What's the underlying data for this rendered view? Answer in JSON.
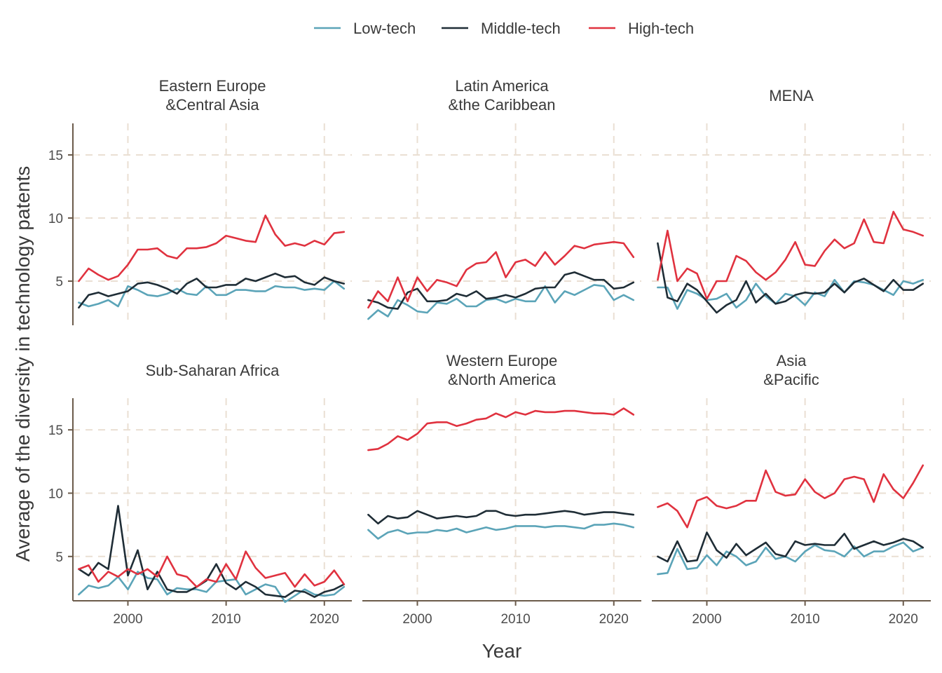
{
  "chart_data": {
    "type": "line",
    "xlabel": "Year",
    "ylabel": "Average of the diversity in technology patents",
    "xlim": [
      1994.4,
      2022.8
    ],
    "ylim": [
      1.5,
      17.5
    ],
    "x_ticks": [
      2000,
      2010,
      2020
    ],
    "y_ticks": [
      5,
      10,
      15
    ],
    "grid": true,
    "legend_position": "top",
    "legend": [
      {
        "name": "Low-tech",
        "color": "#5ba4b8"
      },
      {
        "name": "Middle-tech",
        "color": "#1f2d36"
      },
      {
        "name": "High-tech",
        "color": "#e0323f"
      }
    ],
    "years": [
      1995,
      1996,
      1997,
      1998,
      1999,
      2000,
      2001,
      2002,
      2003,
      2004,
      2005,
      2006,
      2007,
      2008,
      2009,
      2010,
      2011,
      2012,
      2013,
      2014,
      2015,
      2016,
      2017,
      2018,
      2019,
      2020,
      2021,
      2022
    ],
    "panels": [
      {
        "title_line1": "Eastern Europe",
        "title_line2": "&Central Asia",
        "series": [
          {
            "name": "Low-tech",
            "values": [
              3.3,
              3.0,
              3.2,
              3.5,
              3.0,
              4.6,
              4.3,
              3.9,
              3.8,
              4.0,
              4.4,
              4.0,
              3.9,
              4.6,
              3.9,
              3.9,
              4.3,
              4.3,
              4.2,
              4.2,
              4.6,
              4.5,
              4.5,
              4.3,
              4.4,
              4.3,
              5.0,
              4.4
            ]
          },
          {
            "name": "Middle-tech",
            "values": [
              2.9,
              3.9,
              4.1,
              3.8,
              4.0,
              4.2,
              4.8,
              4.9,
              4.7,
              4.4,
              4.0,
              4.8,
              5.2,
              4.5,
              4.5,
              4.7,
              4.7,
              5.2,
              5.0,
              5.3,
              5.6,
              5.3,
              5.4,
              4.9,
              4.7,
              5.3,
              5.0,
              4.8
            ]
          },
          {
            "name": "High-tech",
            "values": [
              5.0,
              6.0,
              5.5,
              5.1,
              5.4,
              6.3,
              7.5,
              7.5,
              7.6,
              7.0,
              6.8,
              7.6,
              7.6,
              7.7,
              8.0,
              8.6,
              8.4,
              8.2,
              8.1,
              10.2,
              8.7,
              7.8,
              8.0,
              7.8,
              8.2,
              7.9,
              8.8,
              8.9
            ]
          }
        ]
      },
      {
        "title_line1": "Latin America",
        "title_line2": "&the Caribbean",
        "series": [
          {
            "name": "Low-tech",
            "values": [
              2.0,
              2.7,
              2.2,
              3.5,
              3.1,
              2.6,
              2.5,
              3.3,
              3.2,
              3.6,
              3.0,
              3.0,
              3.5,
              3.6,
              3.3,
              3.6,
              3.4,
              3.4,
              4.6,
              3.3,
              4.2,
              3.9,
              4.3,
              4.7,
              4.6,
              3.5,
              3.9,
              3.5
            ]
          },
          {
            "name": "Middle-tech",
            "values": [
              3.5,
              3.3,
              2.9,
              2.8,
              4.1,
              4.4,
              3.4,
              3.4,
              3.5,
              4.0,
              3.8,
              4.2,
              3.6,
              3.7,
              3.9,
              3.7,
              4.0,
              4.4,
              4.5,
              4.5,
              5.5,
              5.7,
              5.4,
              5.1,
              5.1,
              4.4,
              4.5,
              4.9
            ]
          },
          {
            "name": "High-tech",
            "values": [
              2.9,
              4.2,
              3.4,
              5.3,
              3.4,
              5.3,
              4.2,
              5.1,
              4.9,
              4.6,
              5.9,
              6.4,
              6.5,
              7.3,
              5.3,
              6.5,
              6.7,
              6.2,
              7.3,
              6.3,
              7.0,
              7.8,
              7.6,
              7.9,
              8.0,
              8.1,
              8.0,
              6.9
            ]
          }
        ]
      },
      {
        "title_line1": "MENA",
        "title_line2": "",
        "series": [
          {
            "name": "Low-tech",
            "values": [
              4.5,
              4.5,
              2.8,
              4.3,
              4.0,
              3.5,
              3.6,
              4.0,
              2.9,
              3.5,
              4.8,
              3.8,
              3.2,
              4.0,
              3.8,
              3.1,
              4.1,
              3.8,
              5.1,
              4.1,
              5.0,
              4.9,
              4.7,
              4.3,
              3.9,
              5.0,
              4.8,
              5.1
            ]
          },
          {
            "name": "Middle-tech",
            "values": [
              8.0,
              3.7,
              3.4,
              4.8,
              4.3,
              3.4,
              2.5,
              3.1,
              3.5,
              5.0,
              3.3,
              4.0,
              3.2,
              3.4,
              3.9,
              4.1,
              4.0,
              4.1,
              4.8,
              4.1,
              4.9,
              5.2,
              4.7,
              4.2,
              5.1,
              4.3,
              4.3,
              4.8
            ]
          },
          {
            "name": "High-tech",
            "values": [
              5.1,
              9.0,
              5.0,
              6.0,
              5.6,
              3.6,
              5.0,
              5.0,
              7.0,
              6.6,
              5.7,
              5.1,
              5.7,
              6.7,
              8.1,
              6.3,
              6.2,
              7.4,
              8.3,
              7.6,
              8.0,
              9.9,
              8.1,
              8.0,
              10.5,
              9.1,
              8.9,
              8.6
            ]
          }
        ]
      },
      {
        "title_line1": "Sub-Saharan Africa",
        "title_line2": "",
        "series": [
          {
            "name": "Low-tech",
            "values": [
              2.0,
              2.7,
              2.5,
              2.7,
              3.4,
              2.4,
              3.8,
              3.3,
              3.2,
              2.0,
              2.5,
              2.4,
              2.4,
              2.2,
              3.0,
              3.1,
              3.2,
              2.0,
              2.4,
              2.8,
              2.6,
              1.4,
              1.9,
              2.4,
              2.0,
              1.9,
              2.0,
              2.6
            ]
          },
          {
            "name": "Middle-tech",
            "values": [
              4.0,
              3.5,
              4.5,
              4.0,
              9.0,
              3.5,
              5.5,
              2.4,
              3.8,
              2.4,
              2.2,
              2.2,
              2.6,
              3.1,
              4.4,
              2.9,
              2.4,
              3.0,
              2.6,
              2.0,
              1.9,
              1.8,
              2.3,
              2.2,
              1.8,
              2.2,
              2.4,
              2.8
            ]
          },
          {
            "name": "High-tech",
            "values": [
              4.0,
              4.3,
              3.0,
              3.8,
              3.4,
              4.0,
              3.6,
              4.0,
              3.4,
              5.0,
              3.6,
              3.4,
              2.6,
              3.2,
              3.0,
              4.4,
              3.2,
              5.4,
              4.1,
              3.3,
              3.5,
              3.7,
              2.6,
              3.6,
              2.7,
              3.0,
              3.9,
              2.8
            ]
          }
        ]
      },
      {
        "title_line1": "Western Europe",
        "title_line2": "&North America",
        "series": [
          {
            "name": "Low-tech",
            "values": [
              7.1,
              6.4,
              6.9,
              7.1,
              6.8,
              6.9,
              6.9,
              7.1,
              7.0,
              7.2,
              6.9,
              7.1,
              7.3,
              7.1,
              7.2,
              7.4,
              7.4,
              7.4,
              7.3,
              7.4,
              7.4,
              7.3,
              7.2,
              7.5,
              7.5,
              7.6,
              7.5,
              7.3
            ]
          },
          {
            "name": "Middle-tech",
            "values": [
              8.3,
              7.6,
              8.2,
              8.0,
              8.1,
              8.6,
              8.3,
              8.0,
              8.1,
              8.2,
              8.1,
              8.2,
              8.6,
              8.6,
              8.3,
              8.2,
              8.3,
              8.3,
              8.4,
              8.5,
              8.6,
              8.5,
              8.3,
              8.4,
              8.5,
              8.5,
              8.4,
              8.3
            ]
          },
          {
            "name": "High-tech",
            "values": [
              13.4,
              13.5,
              13.9,
              14.5,
              14.2,
              14.7,
              15.5,
              15.6,
              15.6,
              15.3,
              15.5,
              15.8,
              15.9,
              16.3,
              16.0,
              16.4,
              16.2,
              16.5,
              16.4,
              16.4,
              16.5,
              16.5,
              16.4,
              16.3,
              16.3,
              16.2,
              16.7,
              16.2
            ]
          }
        ]
      },
      {
        "title_line1": "Asia",
        "title_line2": "&Pacific",
        "series": [
          {
            "name": "Low-tech",
            "values": [
              3.6,
              3.7,
              5.6,
              4.0,
              4.1,
              5.1,
              4.3,
              5.4,
              5.0,
              4.3,
              4.6,
              5.7,
              4.8,
              5.0,
              4.6,
              5.4,
              5.9,
              5.5,
              5.4,
              5.0,
              5.8,
              5.0,
              5.4,
              5.4,
              5.8,
              6.1,
              5.4,
              5.7
            ]
          },
          {
            "name": "Middle-tech",
            "values": [
              5.0,
              4.6,
              6.2,
              4.6,
              4.7,
              6.9,
              5.5,
              4.9,
              6.0,
              5.1,
              5.6,
              6.1,
              5.2,
              5.0,
              6.2,
              5.9,
              6.0,
              5.9,
              5.9,
              6.8,
              5.6,
              5.9,
              6.2,
              5.9,
              6.1,
              6.4,
              6.2,
              5.7
            ]
          },
          {
            "name": "High-tech",
            "values": [
              8.9,
              9.2,
              8.6,
              7.3,
              9.4,
              9.7,
              9.0,
              8.8,
              9.0,
              9.4,
              9.4,
              11.8,
              10.1,
              9.8,
              9.9,
              11.1,
              10.1,
              9.6,
              10.0,
              11.1,
              11.3,
              11.1,
              9.3,
              11.5,
              10.3,
              9.6,
              10.8,
              12.2
            ]
          }
        ]
      }
    ]
  }
}
